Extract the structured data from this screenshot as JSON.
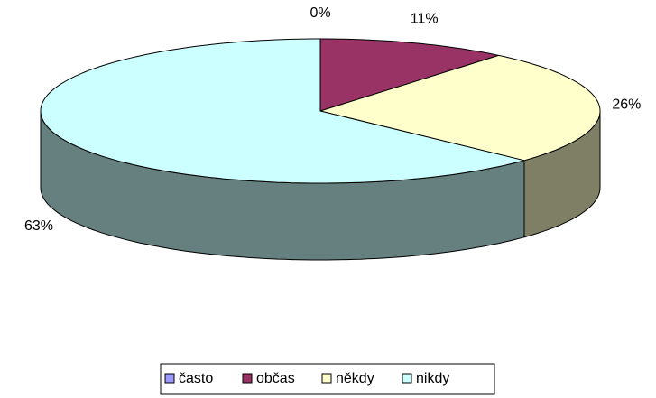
{
  "chart_data": {
    "type": "pie",
    "categories": [
      "často",
      "občas",
      "někdy",
      "nikdy"
    ],
    "values": [
      0,
      11,
      26,
      63
    ],
    "value_labels": [
      "0%",
      "11%",
      "26%",
      "63%"
    ],
    "colors": [
      "#9999ff",
      "#993366",
      "#ffffcc",
      "#ccffff"
    ],
    "legend": "bottom"
  }
}
